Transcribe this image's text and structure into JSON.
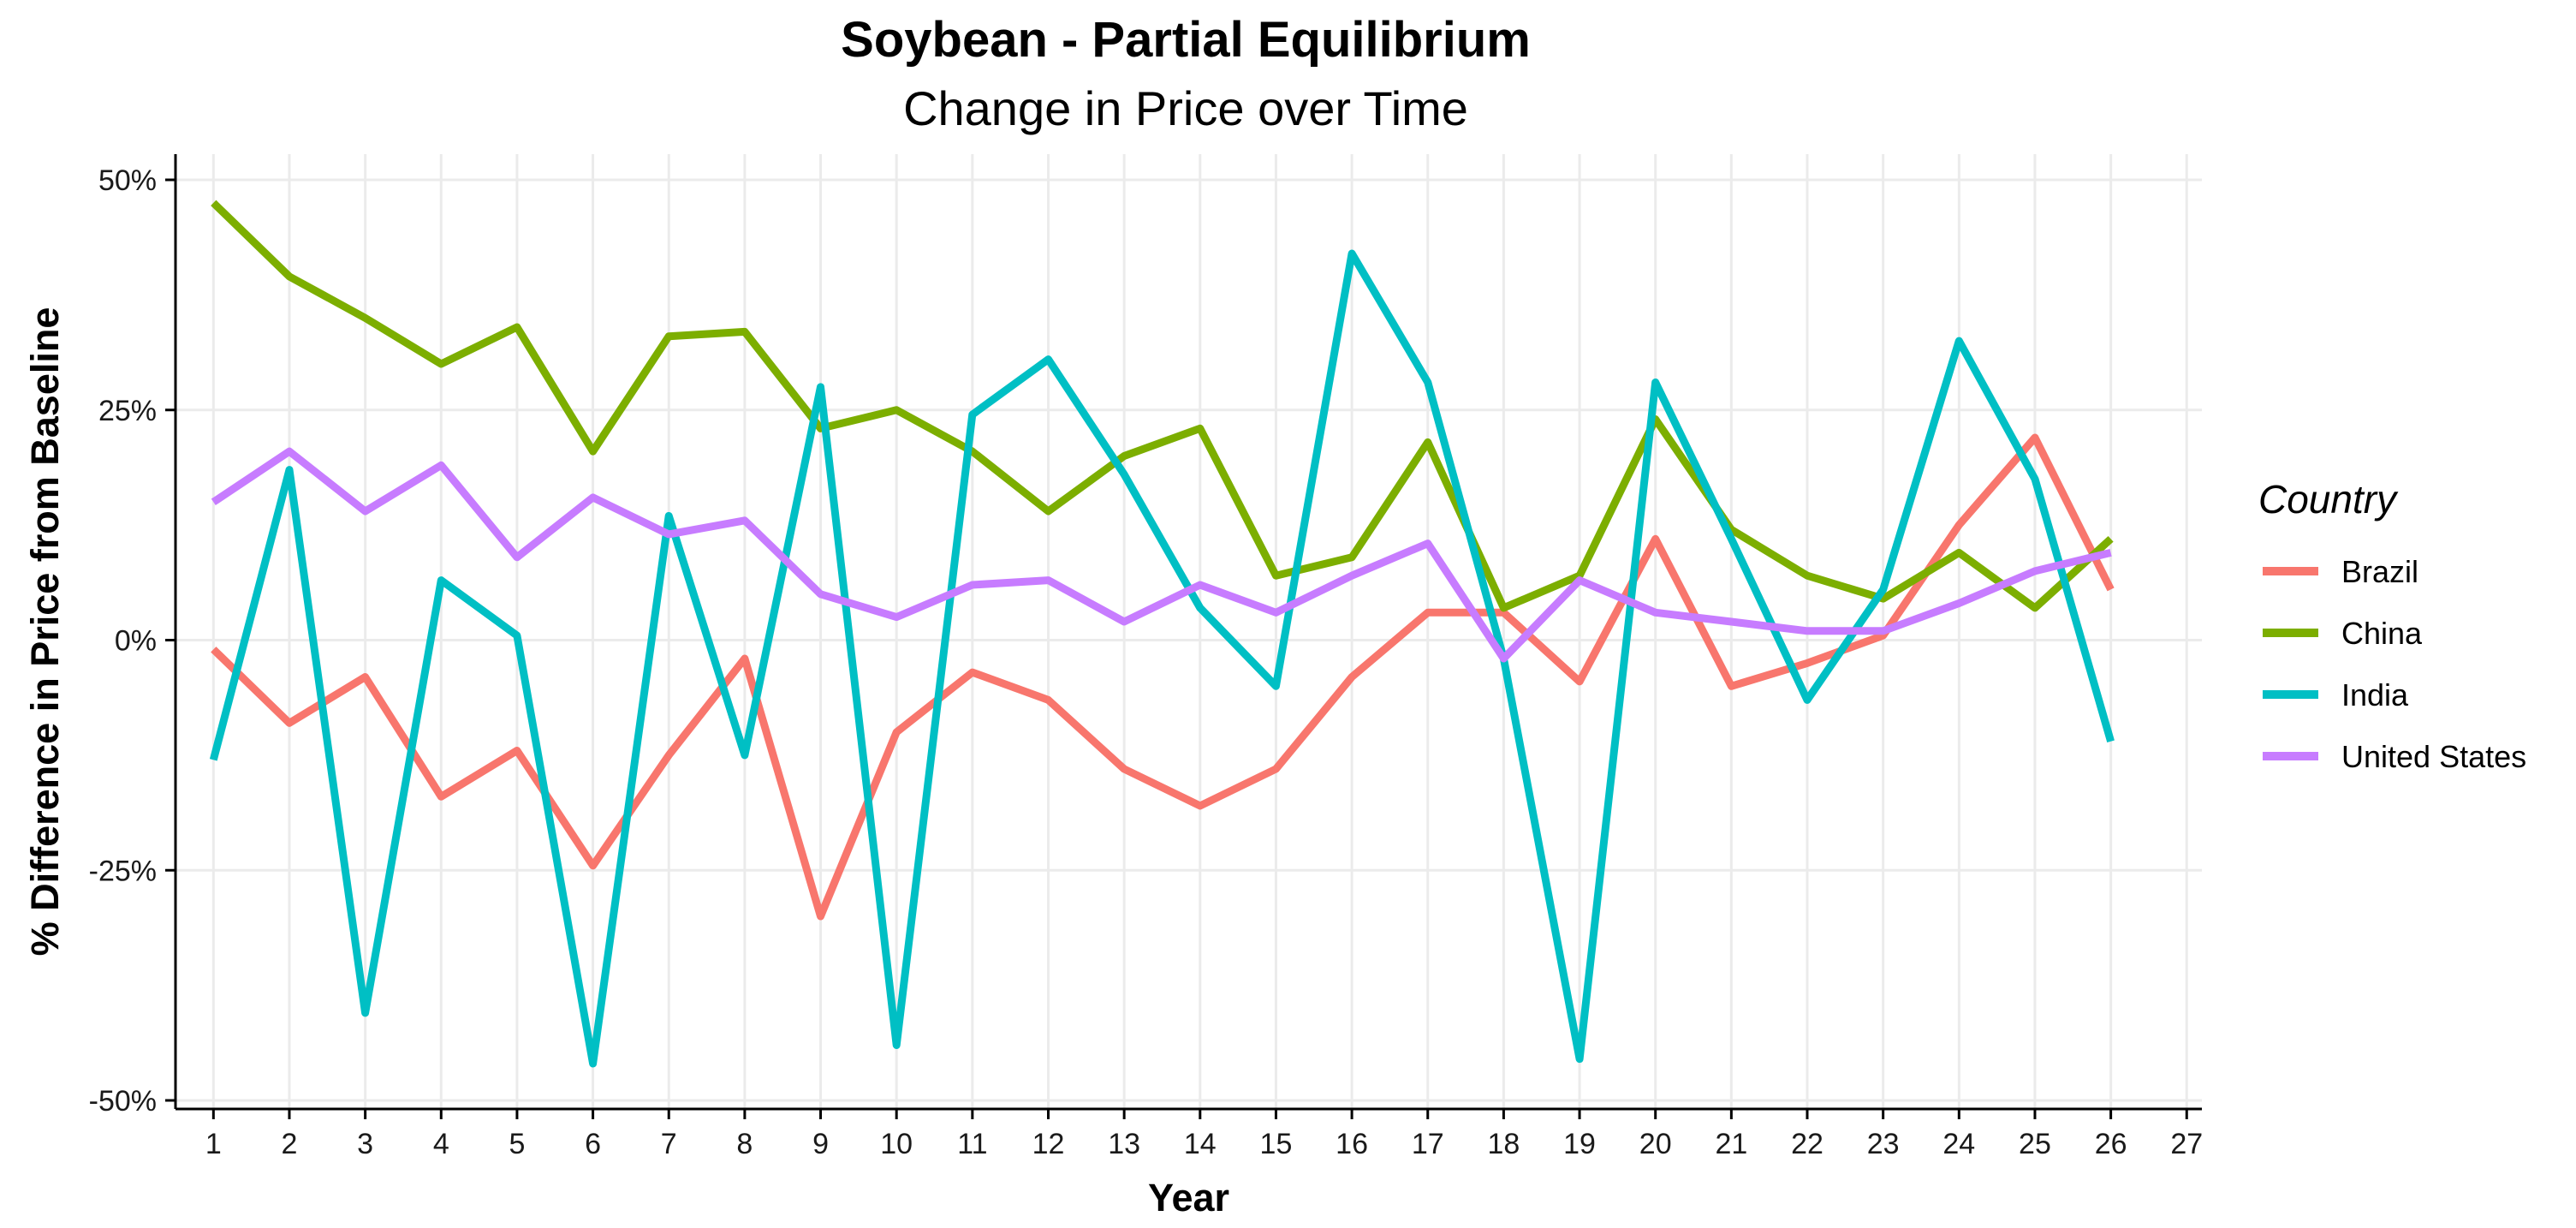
{
  "chart_data": {
    "type": "line",
    "title": "Soybean - Partial Equilibrium",
    "subtitle": "Change in Price over Time",
    "xlabel": "Year",
    "ylabel": "% Difference in Price from Baseline",
    "x": [
      1,
      2,
      3,
      4,
      5,
      6,
      7,
      8,
      9,
      10,
      11,
      12,
      13,
      14,
      15,
      16,
      17,
      18,
      19,
      20,
      21,
      22,
      23,
      24,
      25,
      26
    ],
    "x_ticks": [
      "1",
      "2",
      "3",
      "4",
      "5",
      "6",
      "7",
      "8",
      "9",
      "10",
      "11",
      "12",
      "13",
      "14",
      "15",
      "16",
      "17",
      "18",
      "19",
      "20",
      "21",
      "22",
      "23",
      "24",
      "25",
      "26",
      "27"
    ],
    "xlim": [
      0.5,
      27.2
    ],
    "ylim": [
      -0.5,
      0.5
    ],
    "y_ticks": [
      0.5,
      0.25,
      0,
      -0.25,
      -0.5
    ],
    "y_tick_labels": [
      "50%",
      "25%",
      "0%",
      "-25%",
      "-50%"
    ],
    "grid": true,
    "legend": {
      "title": "Country",
      "position": "right"
    },
    "series": [
      {
        "name": "Brazil",
        "color": "#F8766D",
        "values": [
          -0.01,
          -0.09,
          -0.04,
          -0.17,
          -0.12,
          -0.245,
          -0.125,
          -0.02,
          -0.3,
          -0.1,
          -0.035,
          -0.065,
          -0.14,
          -0.18,
          -0.14,
          -0.04,
          0.03,
          0.03,
          -0.045,
          0.11,
          -0.05,
          -0.025,
          0.005,
          0.125,
          0.22,
          0.055
        ]
      },
      {
        "name": "China",
        "color": "#7CAE00",
        "values": [
          0.475,
          0.395,
          0.35,
          0.3,
          0.34,
          0.205,
          0.33,
          0.335,
          0.23,
          0.25,
          0.205,
          0.14,
          0.2,
          0.23,
          0.07,
          0.09,
          0.215,
          0.035,
          0.07,
          0.24,
          0.12,
          0.07,
          0.045,
          0.095,
          0.035,
          0.11
        ]
      },
      {
        "name": "India",
        "color": "#00BFC4",
        "values": [
          -0.13,
          0.185,
          -0.405,
          0.065,
          0.005,
          -0.46,
          0.135,
          -0.125,
          0.275,
          -0.44,
          0.245,
          0.305,
          0.18,
          0.035,
          -0.05,
          0.42,
          0.28,
          -0.02,
          -0.455,
          0.28,
          0.11,
          -0.065,
          0.055,
          0.325,
          0.175,
          -0.11
        ]
      },
      {
        "name": "United States",
        "color": "#C77CFF",
        "values": [
          0.15,
          0.205,
          0.14,
          0.19,
          0.09,
          0.155,
          0.115,
          0.13,
          0.05,
          0.025,
          0.06,
          0.065,
          0.02,
          0.06,
          0.03,
          0.07,
          0.105,
          -0.02,
          0.065,
          0.03,
          0.02,
          0.01,
          0.01,
          0.04,
          0.075,
          0.095
        ]
      }
    ]
  }
}
